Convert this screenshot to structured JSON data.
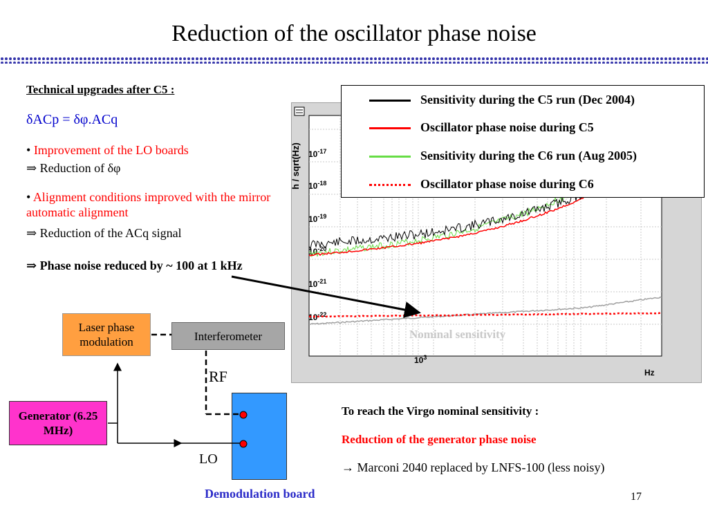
{
  "title": "Reduction of the oscillator phase noise",
  "left_text": {
    "heading": "Technical upgrades after C5 :",
    "formula": "δACp = δφ.ACq",
    "bullet1": "Improvement of the LO boards",
    "bullet1_sub": "⇒ Reduction of δφ",
    "bullet2": "Alignment conditions improved with the mirror automatic alignment",
    "bullet2_sub": "⇒ Reduction of the ACq signal",
    "conclusion": "⇒ Phase noise reduced by ~ 100 at 1 kHz"
  },
  "plot": {
    "ylabel": "h / sqrt(Hz)",
    "xlabel": "Hz",
    "y_ticks": [
      "10-17",
      "10-18",
      "10-19",
      "10-20",
      "10-21",
      "10-22"
    ],
    "x_tick": "103",
    "annotation": "Nominal sensitivity",
    "legend": [
      {
        "label": "Sensitivity during the C5 run (Dec 2004)",
        "color": "#000000",
        "style": "solid"
      },
      {
        "label": "Oscillator phase noise during C5",
        "color": "#ff0000",
        "style": "solid"
      },
      {
        "label": "Sensitivity during the C6 run (Aug 2005)",
        "color": "#66dd44",
        "style": "solid"
      },
      {
        "label": "Oscillator phase noise during C6",
        "color": "#ff0000",
        "style": "dotted"
      }
    ]
  },
  "diagram": {
    "laser": "Laser phase modulation",
    "interferometer": "Interferometer",
    "generator": "Generator (6.25 MHz)",
    "rf": "RF",
    "lo": "LO",
    "demod_label": "Demodulation board"
  },
  "bottom_text": {
    "line1": "To reach the Virgo nominal sensitivity :",
    "line2": "Reduction of the generator phase noise",
    "line3": "→ Marconi 2040 replaced by LNFS-100 (less noisy)"
  },
  "page_number": "17",
  "colors": {
    "title_rule": "#3333aa",
    "laser_box": "#ff9f40",
    "generator_box": "#ff33cc",
    "demod_box": "#3399ff",
    "interferometer_box": "#a6a6a6"
  }
}
